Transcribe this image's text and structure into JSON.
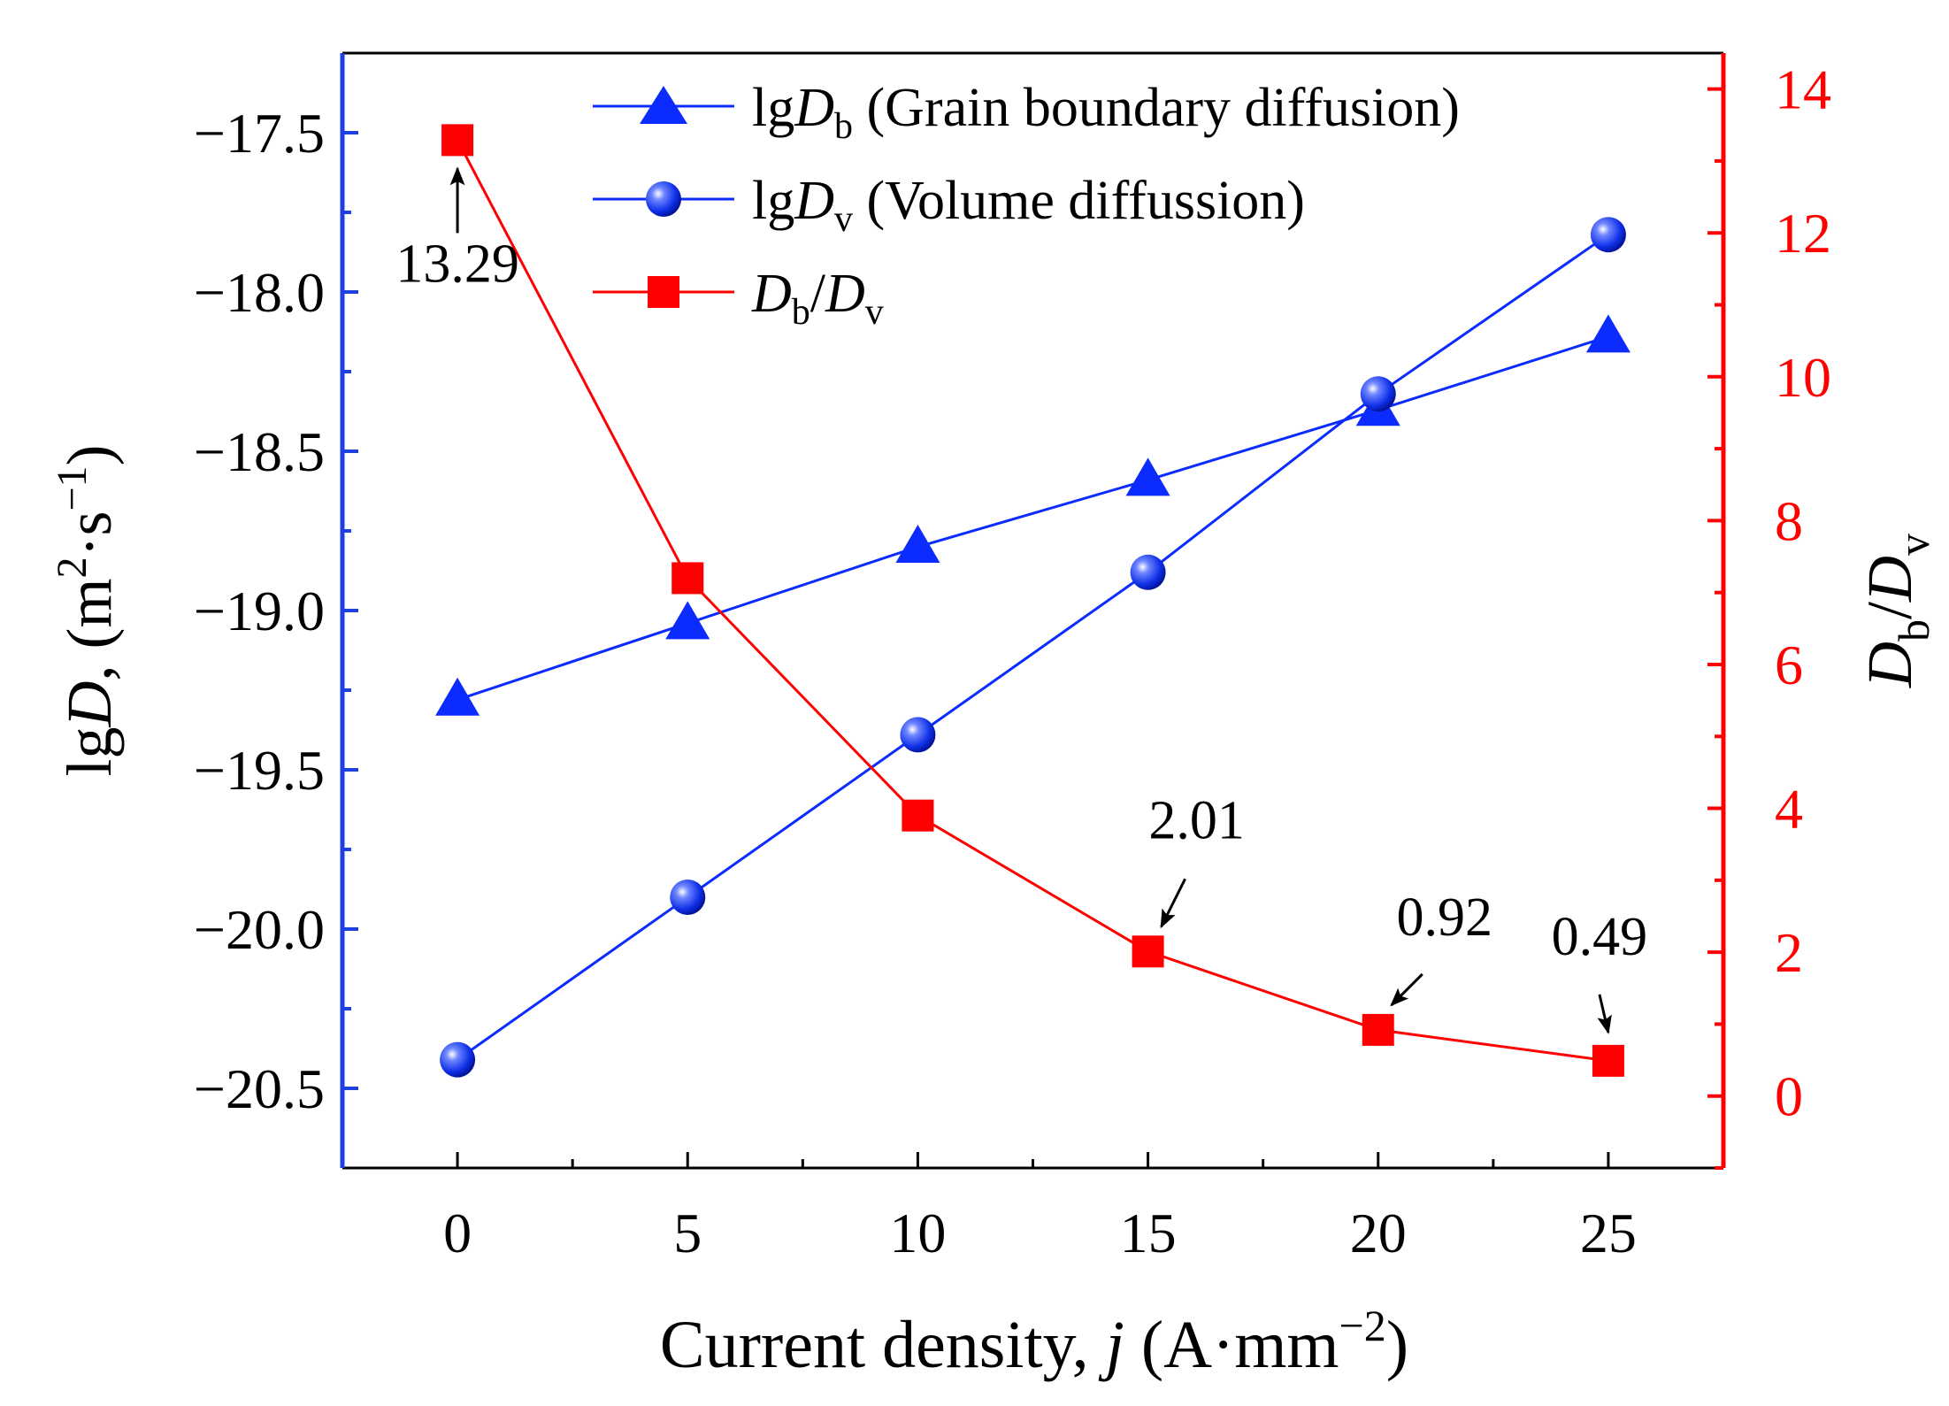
{
  "colors": {
    "left_axis": "#1f3fe0",
    "right_axis": "#ff0000",
    "blue_series": "#0b2bff",
    "red_series": "#ff0000",
    "text": "#000000"
  },
  "chart_data": {
    "type": "line",
    "x": [
      0,
      5,
      10,
      15,
      20,
      25
    ],
    "xlim": [
      -2.5,
      27.5
    ],
    "xticks": [
      0,
      5,
      10,
      15,
      20,
      25
    ],
    "xtick_labels": [
      "0",
      "5",
      "10",
      "15",
      "20",
      "25"
    ],
    "ylim_left": [
      -20.75,
      -17.25
    ],
    "yticks_left": [
      -17.5,
      -18.0,
      -18.5,
      -19.0,
      -19.5,
      -20.0,
      -20.5
    ],
    "ytick_labels_left": [
      "−17.5",
      "−18.0",
      "−18.5",
      "−19.0",
      "−19.5",
      "−20.0",
      "−20.5"
    ],
    "ylim_right": [
      -1,
      14.5
    ],
    "yticks_right": [
      0,
      2,
      4,
      6,
      8,
      10,
      12,
      14
    ],
    "ytick_labels_right": [
      "0",
      "2",
      "4",
      "6",
      "8",
      "10",
      "12",
      "14"
    ],
    "xlabel": {
      "main": "Current density, ",
      "var": "j",
      "unit_open": " (A·mm",
      "exp": "−2",
      "unit_close": ")"
    },
    "ylabel_left": {
      "pre": "lg",
      "var": "D",
      "unit_open": ", (m",
      "exp1": "2",
      "mid": "·s",
      "exp2": "−1",
      "unit_close": ")"
    },
    "ylabel_right": {
      "var1": "D",
      "sub1": "b",
      "slash": "/",
      "var2": "D",
      "sub2": "v"
    },
    "series": [
      {
        "name_pre": "lg",
        "name_var": "D",
        "name_sub": "b",
        "name_post": " (Grain boundary diffusion)",
        "axis": "left",
        "marker": "triangle",
        "values": [
          -19.28,
          -19.04,
          -18.8,
          -18.59,
          -18.37,
          -18.14
        ]
      },
      {
        "name_pre": "lg",
        "name_var": "D",
        "name_sub": "v",
        "name_post": " (Volume diffussion)",
        "axis": "left",
        "marker": "sphere",
        "values": [
          -20.41,
          -19.9,
          -19.39,
          -18.88,
          -18.32,
          -17.82
        ]
      },
      {
        "name_var1": "D",
        "name_sub1": "b",
        "name_slash": "/",
        "name_var2": "D",
        "name_sub2": "v",
        "axis": "right",
        "marker": "square",
        "values": [
          13.29,
          7.2,
          3.9,
          2.01,
          0.92,
          0.49
        ]
      }
    ],
    "annotations": [
      {
        "text": "13.29",
        "x": 0,
        "y": 13.29
      },
      {
        "text": "2.01",
        "x": 15,
        "y": 2.01
      },
      {
        "text": "0.92",
        "x": 20,
        "y": 0.92
      },
      {
        "text": "0.49",
        "x": 25,
        "y": 0.49
      }
    ],
    "legend_position": "top-center",
    "grid": false
  }
}
